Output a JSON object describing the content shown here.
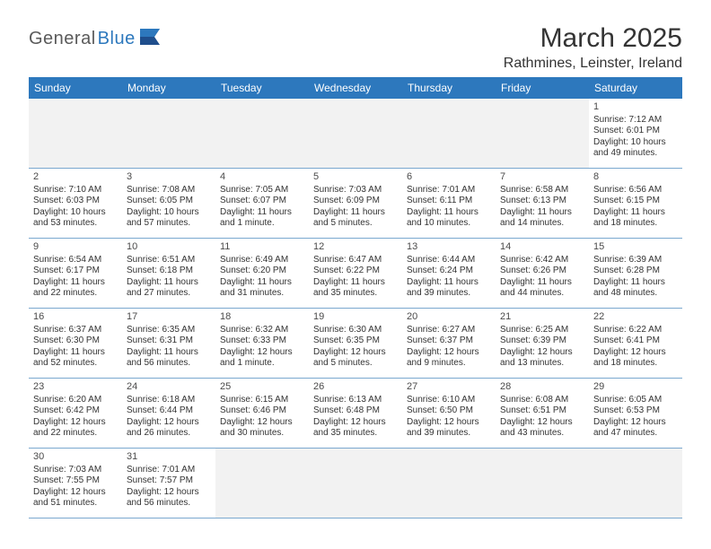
{
  "logo": {
    "part1": "General",
    "part2": "Blue"
  },
  "title": "March 2025",
  "location": "Rathmines, Leinster, Ireland",
  "daynames": [
    "Sunday",
    "Monday",
    "Tuesday",
    "Wednesday",
    "Thursday",
    "Friday",
    "Saturday"
  ],
  "colors": {
    "header_bg": "#2d78bd",
    "header_text": "#ffffff",
    "cell_border": "#7aa8cf",
    "blank_bg": "#f2f2f2",
    "text": "#333333",
    "logo_gray": "#5a5a5a",
    "logo_blue": "#2d78bd"
  },
  "weeks": [
    [
      {
        "blank": true
      },
      {
        "blank": true
      },
      {
        "blank": true
      },
      {
        "blank": true
      },
      {
        "blank": true
      },
      {
        "blank": true
      },
      {
        "n": "1",
        "sr": "Sunrise: 7:12 AM",
        "ss": "Sunset: 6:01 PM",
        "dl": "Daylight: 10 hours and 49 minutes."
      }
    ],
    [
      {
        "n": "2",
        "sr": "Sunrise: 7:10 AM",
        "ss": "Sunset: 6:03 PM",
        "dl": "Daylight: 10 hours and 53 minutes."
      },
      {
        "n": "3",
        "sr": "Sunrise: 7:08 AM",
        "ss": "Sunset: 6:05 PM",
        "dl": "Daylight: 10 hours and 57 minutes."
      },
      {
        "n": "4",
        "sr": "Sunrise: 7:05 AM",
        "ss": "Sunset: 6:07 PM",
        "dl": "Daylight: 11 hours and 1 minute."
      },
      {
        "n": "5",
        "sr": "Sunrise: 7:03 AM",
        "ss": "Sunset: 6:09 PM",
        "dl": "Daylight: 11 hours and 5 minutes."
      },
      {
        "n": "6",
        "sr": "Sunrise: 7:01 AM",
        "ss": "Sunset: 6:11 PM",
        "dl": "Daylight: 11 hours and 10 minutes."
      },
      {
        "n": "7",
        "sr": "Sunrise: 6:58 AM",
        "ss": "Sunset: 6:13 PM",
        "dl": "Daylight: 11 hours and 14 minutes."
      },
      {
        "n": "8",
        "sr": "Sunrise: 6:56 AM",
        "ss": "Sunset: 6:15 PM",
        "dl": "Daylight: 11 hours and 18 minutes."
      }
    ],
    [
      {
        "n": "9",
        "sr": "Sunrise: 6:54 AM",
        "ss": "Sunset: 6:17 PM",
        "dl": "Daylight: 11 hours and 22 minutes."
      },
      {
        "n": "10",
        "sr": "Sunrise: 6:51 AM",
        "ss": "Sunset: 6:18 PM",
        "dl": "Daylight: 11 hours and 27 minutes."
      },
      {
        "n": "11",
        "sr": "Sunrise: 6:49 AM",
        "ss": "Sunset: 6:20 PM",
        "dl": "Daylight: 11 hours and 31 minutes."
      },
      {
        "n": "12",
        "sr": "Sunrise: 6:47 AM",
        "ss": "Sunset: 6:22 PM",
        "dl": "Daylight: 11 hours and 35 minutes."
      },
      {
        "n": "13",
        "sr": "Sunrise: 6:44 AM",
        "ss": "Sunset: 6:24 PM",
        "dl": "Daylight: 11 hours and 39 minutes."
      },
      {
        "n": "14",
        "sr": "Sunrise: 6:42 AM",
        "ss": "Sunset: 6:26 PM",
        "dl": "Daylight: 11 hours and 44 minutes."
      },
      {
        "n": "15",
        "sr": "Sunrise: 6:39 AM",
        "ss": "Sunset: 6:28 PM",
        "dl": "Daylight: 11 hours and 48 minutes."
      }
    ],
    [
      {
        "n": "16",
        "sr": "Sunrise: 6:37 AM",
        "ss": "Sunset: 6:30 PM",
        "dl": "Daylight: 11 hours and 52 minutes."
      },
      {
        "n": "17",
        "sr": "Sunrise: 6:35 AM",
        "ss": "Sunset: 6:31 PM",
        "dl": "Daylight: 11 hours and 56 minutes."
      },
      {
        "n": "18",
        "sr": "Sunrise: 6:32 AM",
        "ss": "Sunset: 6:33 PM",
        "dl": "Daylight: 12 hours and 1 minute."
      },
      {
        "n": "19",
        "sr": "Sunrise: 6:30 AM",
        "ss": "Sunset: 6:35 PM",
        "dl": "Daylight: 12 hours and 5 minutes."
      },
      {
        "n": "20",
        "sr": "Sunrise: 6:27 AM",
        "ss": "Sunset: 6:37 PM",
        "dl": "Daylight: 12 hours and 9 minutes."
      },
      {
        "n": "21",
        "sr": "Sunrise: 6:25 AM",
        "ss": "Sunset: 6:39 PM",
        "dl": "Daylight: 12 hours and 13 minutes."
      },
      {
        "n": "22",
        "sr": "Sunrise: 6:22 AM",
        "ss": "Sunset: 6:41 PM",
        "dl": "Daylight: 12 hours and 18 minutes."
      }
    ],
    [
      {
        "n": "23",
        "sr": "Sunrise: 6:20 AM",
        "ss": "Sunset: 6:42 PM",
        "dl": "Daylight: 12 hours and 22 minutes."
      },
      {
        "n": "24",
        "sr": "Sunrise: 6:18 AM",
        "ss": "Sunset: 6:44 PM",
        "dl": "Daylight: 12 hours and 26 minutes."
      },
      {
        "n": "25",
        "sr": "Sunrise: 6:15 AM",
        "ss": "Sunset: 6:46 PM",
        "dl": "Daylight: 12 hours and 30 minutes."
      },
      {
        "n": "26",
        "sr": "Sunrise: 6:13 AM",
        "ss": "Sunset: 6:48 PM",
        "dl": "Daylight: 12 hours and 35 minutes."
      },
      {
        "n": "27",
        "sr": "Sunrise: 6:10 AM",
        "ss": "Sunset: 6:50 PM",
        "dl": "Daylight: 12 hours and 39 minutes."
      },
      {
        "n": "28",
        "sr": "Sunrise: 6:08 AM",
        "ss": "Sunset: 6:51 PM",
        "dl": "Daylight: 12 hours and 43 minutes."
      },
      {
        "n": "29",
        "sr": "Sunrise: 6:05 AM",
        "ss": "Sunset: 6:53 PM",
        "dl": "Daylight: 12 hours and 47 minutes."
      }
    ],
    [
      {
        "n": "30",
        "sr": "Sunrise: 7:03 AM",
        "ss": "Sunset: 7:55 PM",
        "dl": "Daylight: 12 hours and 51 minutes."
      },
      {
        "n": "31",
        "sr": "Sunrise: 7:01 AM",
        "ss": "Sunset: 7:57 PM",
        "dl": "Daylight: 12 hours and 56 minutes."
      },
      {
        "blank": true
      },
      {
        "blank": true
      },
      {
        "blank": true
      },
      {
        "blank": true
      },
      {
        "blank": true
      }
    ]
  ]
}
